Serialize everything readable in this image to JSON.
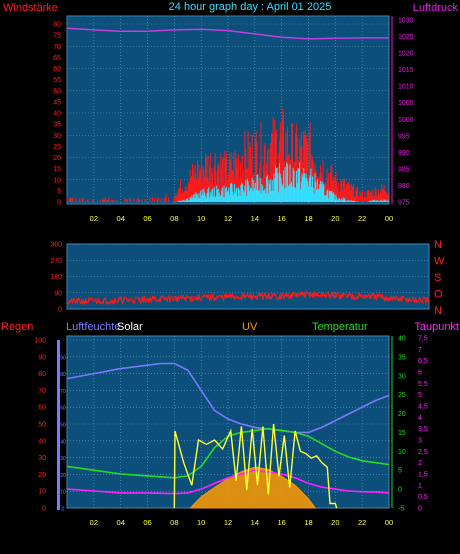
{
  "header": {
    "left_label": "Windstärke",
    "title": "24 hour graph day : April 01 2025",
    "right_label": "Luftdruck"
  },
  "colors": {
    "background": "#000000",
    "plot_bg": "#0b4f7a",
    "grid": "#5fa7c9",
    "wind": "#ff1a1a",
    "gust": "#33e0ff",
    "pressure": "#c040e0",
    "left_axis": "#ff2020",
    "right_axis": "#e020e0",
    "x_ticks": "#ffff40",
    "humidity": "#7a7aff",
    "solar": "#ffffff",
    "uv": "#ff9900",
    "temperature": "#22dd22",
    "dewpoint": "#ff22ff",
    "solar_line": "#ffff33"
  },
  "chart_data": [
    {
      "id": "wind_pressure",
      "type": "line",
      "title": "24 hour graph day : April 01 2025",
      "xlabel": "",
      "x_ticks": [
        "02",
        "04",
        "06",
        "08",
        "10",
        "12",
        "14",
        "16",
        "18",
        "20",
        "22",
        "00"
      ],
      "ylabel_left": "Windstärke",
      "ylim_left": [
        0,
        80
      ],
      "y_ticks_left": [
        "0",
        "5",
        "10",
        "15",
        "20",
        "25",
        "30",
        "35",
        "40",
        "45",
        "50",
        "55",
        "60",
        "65",
        "70",
        "75",
        "80"
      ],
      "ylabel_right": "Luftdruck",
      "ylim_right": [
        975,
        1030
      ],
      "y_ticks_right": [
        "975",
        "980",
        "985",
        "990",
        "995",
        "1000",
        "1005",
        "1010",
        "1015",
        "1020",
        "1025",
        "1030"
      ],
      "grid": true,
      "series": [
        {
          "name": "",
          "color_key": "pressure",
          "axis": "right",
          "x_hours": [
            0,
            2,
            4,
            6,
            8,
            10,
            12,
            14,
            16,
            18,
            20,
            22,
            24
          ],
          "values": [
            1027.5,
            1027,
            1026.6,
            1026.6,
            1027,
            1027.2,
            1026.8,
            1025.8,
            1024.8,
            1024.3,
            1024.5,
            1024.6,
            1024.6
          ]
        },
        {
          "name": "",
          "color_key": "wind",
          "axis": "left",
          "x_hours": [
            0,
            2,
            4,
            6,
            8,
            9,
            10,
            11,
            12,
            13,
            14,
            15,
            16,
            17,
            18,
            19,
            20,
            21,
            22,
            23,
            24
          ],
          "values": [
            2,
            1,
            1,
            2,
            5,
            12,
            20,
            22,
            18,
            25,
            28,
            30,
            35,
            28,
            30,
            20,
            12,
            8,
            4,
            6,
            8
          ]
        },
        {
          "name": "",
          "color_key": "gust",
          "axis": "left",
          "x_hours": [
            0,
            8,
            9,
            10,
            11,
            12,
            13,
            14,
            15,
            16,
            17,
            18,
            19,
            20,
            21,
            22,
            23,
            24
          ],
          "values": [
            0,
            0,
            2,
            5,
            6,
            7,
            8,
            10,
            12,
            15,
            16,
            14,
            8,
            3,
            1,
            0,
            1,
            1
          ]
        }
      ]
    },
    {
      "id": "wind_direction",
      "type": "scatter",
      "ylabel_right_letters": [
        "N",
        "W",
        "S",
        "O",
        "N"
      ],
      "ylim": [
        0,
        360
      ],
      "y_ticks": [
        "0",
        "90",
        "180",
        "270",
        "360"
      ],
      "x_ticks": [],
      "grid": true,
      "series": [
        {
          "name": "",
          "color_key": "wind",
          "x_hours": [
            0,
            2,
            4,
            6,
            8,
            10,
            12,
            14,
            16,
            18,
            20,
            22,
            24
          ],
          "values": [
            40,
            45,
            50,
            55,
            60,
            65,
            70,
            70,
            80,
            75,
            70,
            55,
            45
          ]
        }
      ]
    },
    {
      "id": "climate",
      "type": "line",
      "labels": {
        "regen": "Regen",
        "luftfeuchte": "Luftfeuchte",
        "solar": "Solar",
        "uv": "UV",
        "temperatur": "Temperatur",
        "taupunkt": "Taupunkt"
      },
      "x_ticks": [
        "02",
        "04",
        "06",
        "08",
        "10",
        "12",
        "14",
        "16",
        "18",
        "20",
        "22",
        "00"
      ],
      "y_ticks_regen": [
        "0",
        "10",
        "20",
        "30",
        "40",
        "50",
        "60",
        "70",
        "80",
        "90",
        "100"
      ],
      "ylim_regen": [
        0,
        100
      ],
      "y_ticks_humidity": [
        "0",
        "10",
        "20",
        "30",
        "40",
        "50",
        "60",
        "70",
        "80",
        "90"
      ],
      "y_ticks_temperature": [
        "-5",
        "0",
        "5",
        "10",
        "15",
        "20",
        "25",
        "30",
        "35",
        "40"
      ],
      "ylim_temperature": [
        -5,
        40
      ],
      "y_ticks_uv": [
        "0",
        "0,5",
        "1",
        "1,5",
        "2",
        "2,5",
        "3",
        "3,5",
        "4",
        "4,5",
        "5",
        "5,5",
        "6",
        "6,5",
        "7",
        "7,5"
      ],
      "ylim_uv": [
        0,
        7.5
      ],
      "grid": true,
      "series": [
        {
          "name": "",
          "color_key": "humidity",
          "axis": "regen",
          "x_hours": [
            0,
            2,
            4,
            6,
            7,
            8,
            9,
            10,
            11,
            12,
            13,
            14,
            15,
            16,
            17,
            18,
            19,
            20,
            21,
            22,
            23,
            24
          ],
          "values": [
            77,
            80,
            83,
            85,
            86,
            86,
            82,
            70,
            58,
            53,
            50,
            48,
            47,
            46,
            45,
            45,
            48,
            52,
            56,
            60,
            64,
            67
          ]
        },
        {
          "name": "",
          "color_key": "temperature",
          "axis": "temperature",
          "x_hours": [
            0,
            2,
            4,
            6,
            8,
            9,
            10,
            11,
            12,
            13,
            14,
            15,
            16,
            17,
            18,
            19,
            20,
            21,
            22,
            23,
            24
          ],
          "values": [
            6,
            5,
            4,
            3.5,
            3,
            3.5,
            6,
            11,
            14,
            15,
            15.5,
            16,
            15.5,
            15,
            14,
            12,
            10,
            8.5,
            7.5,
            7,
            6.5
          ]
        },
        {
          "name": "",
          "color_key": "dewpoint",
          "axis": "temperature",
          "x_hours": [
            0,
            2,
            4,
            6,
            8,
            9,
            10,
            11,
            12,
            13,
            14,
            15,
            16,
            17,
            18,
            19,
            20,
            21,
            22,
            23,
            24
          ],
          "values": [
            0,
            -0.5,
            -1,
            -1,
            -1.2,
            -1,
            0,
            1.5,
            3,
            4,
            5,
            4.5,
            4,
            3,
            1.5,
            0.5,
            0,
            -0.5,
            -0.7,
            -0.8,
            -1
          ]
        },
        {
          "name": "",
          "color_key": "solar_line",
          "axis": "uv",
          "x_hours": [
            8,
            8.05,
            8.7,
            9.3,
            9.8,
            10.4,
            11,
            11.6,
            12.2,
            12.6,
            13,
            13.4,
            13.8,
            14.2,
            14.6,
            15,
            15.4,
            15.8,
            16.2,
            16.6,
            17,
            17.4,
            17.8,
            18.2,
            18.6,
            19,
            19.4,
            19.6,
            20,
            20.1
          ],
          "values": [
            0,
            3.4,
            2,
            1,
            3,
            2.8,
            3,
            2.6,
            3.4,
            1.2,
            3.6,
            0.8,
            3.5,
            1,
            3.6,
            0.6,
            3.7,
            1.4,
            3.2,
            0.9,
            3.4,
            2.5,
            2.4,
            2.2,
            2.3,
            2,
            1.8,
            0.2,
            0.2,
            0
          ]
        },
        {
          "name": "",
          "color_key": "uv",
          "axis": "uv",
          "x_hours": [
            9.2,
            10,
            11,
            12,
            13,
            14,
            15,
            16,
            17,
            18,
            18.5
          ],
          "values": [
            0,
            0.5,
            0.9,
            1.3,
            1.6,
            1.8,
            1.7,
            1.4,
            1.0,
            0.4,
            0
          ]
        }
      ]
    }
  ]
}
